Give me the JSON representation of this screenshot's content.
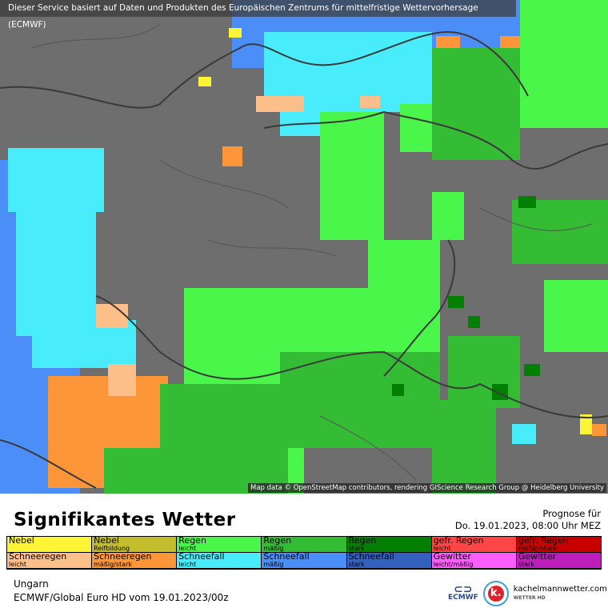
{
  "map": {
    "banner": "Dieser Service basiert auf Daten und Produkten des Europäischen Zentrums für mittelfristige Wettervorhersage (ECMWF)",
    "credit": "Map data © OpenStreetMap contributors, rendering GIScience Research Group @ Heidelberg University",
    "colors": {
      "background": "#6e6e6e",
      "border": "#3a3a3a"
    }
  },
  "header": {
    "title": "Signifikantes Wetter",
    "forecast_label": "Prognose für",
    "forecast_time": "Do. 19.01.2023, 08:00 Uhr MEZ"
  },
  "legend": [
    {
      "a": "Nebel",
      "b": "",
      "color": "#fdf337"
    },
    {
      "a": "Nebel",
      "b": "Reifbildung",
      "color": "#c3bd2e"
    },
    {
      "a": "Regen",
      "b": "leicht",
      "color": "#49f649"
    },
    {
      "a": "Regen",
      "b": "mäßig",
      "color": "#34bd34"
    },
    {
      "a": "Regen",
      "b": "stark",
      "color": "#038003"
    },
    {
      "a": "gefr. Regen",
      "b": "leicht",
      "color": "#fe4646"
    },
    {
      "a": "gefr. Regen",
      "b": "mäßig/stark",
      "color": "#c80000"
    },
    {
      "a": "Schneeregen",
      "b": "leicht",
      "color": "#fdbf8a"
    },
    {
      "a": "Schneeregen",
      "b": "mäßig/stark",
      "color": "#fd9638"
    },
    {
      "a": "Schneefall",
      "b": "leicht",
      "color": "#48ecfa"
    },
    {
      "a": "Schneefall",
      "b": "mäßig",
      "color": "#4c8ef8"
    },
    {
      "a": "Schneefall",
      "b": "stark",
      "color": "#3561be"
    },
    {
      "a": "Gewitter",
      "b": "leicht/mäßig",
      "color": "#fb5efb"
    },
    {
      "a": "Gewitter",
      "b": "stark",
      "color": "#bd1fbd"
    }
  ],
  "footer": {
    "region": "Ungarn",
    "model": "ECMWF/Global Euro HD vom  19.01.2023/00z",
    "ecmwf": "ECMWF",
    "brand": "kachelmannwetter.com",
    "brand_sub": "WETTER HD",
    "brand_letter": "k."
  }
}
